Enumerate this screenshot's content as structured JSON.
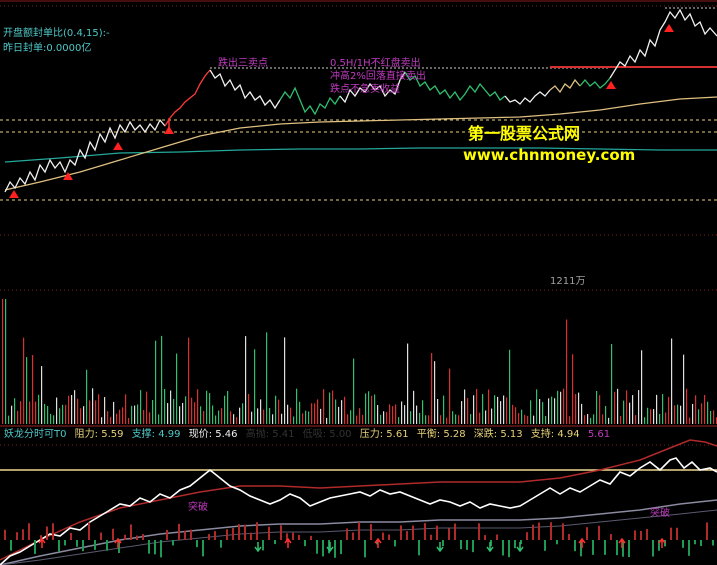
{
  "colors": {
    "bg": "#000000",
    "grid_dotted": "#9b2424",
    "price_red": "#ff3b3b",
    "price_white": "#f0f0f0",
    "price_green": "#2fbf6f",
    "avg_line": "#e0c080",
    "support_line": "#23a89a",
    "dashed_yellow": "#e8d27a",
    "magenta": "#c03ac0",
    "cyan_text": "#50c8c8",
    "watermark_yellow": "#ffff00",
    "vol_red": "#d93030",
    "vol_green": "#30c070",
    "vol_white": "#e0e0e0",
    "band_red": "#b02a2a",
    "indicator_white": "#ffffff",
    "indicator_gray": "#8a8aa0",
    "hline_yellow": "#f0d890"
  },
  "top_left": {
    "line1": "开盘额封单比(0.4,15):-",
    "line2": "昨日封单:0.0000亿"
  },
  "annotations": {
    "a1": "跌出三卖点",
    "a2": "0.5H/1H不红盘卖出",
    "a3": "冲高2%回落直接卖出",
    "a4": "跌点不急卖收益"
  },
  "watermark": {
    "line1": "第一股票公式网",
    "line2": "www.chnmoney.com"
  },
  "volume_label": "1211万",
  "indicator": {
    "name": "妖龙分时可T0",
    "resist": "阻力: 5.59",
    "support": "支撑: 4.99",
    "price": "现价: 5.46",
    "faded1": "高抛: 5.41",
    "faded2": "低吸: 5.00",
    "pressure": "压力: 5.61",
    "balance": "平衡: 5.28",
    "deep": "深跌: 5.13",
    "hold": "支持: 4.94",
    "last": "5.61"
  },
  "signals": {
    "break_label": "突破"
  },
  "icons": [
    "buy-triangle-icon",
    "sell-arrow-up-icon",
    "sell-arrow-down-icon"
  ]
}
